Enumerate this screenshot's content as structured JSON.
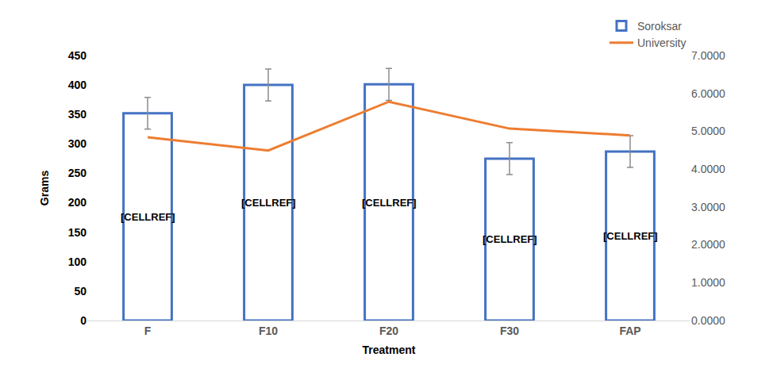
{
  "chart_data": {
    "type": "bar",
    "x_label": "Treatment",
    "y_label": "Grams",
    "categories": [
      "F",
      "F10",
      "F20",
      "F30",
      "FAP"
    ],
    "series": [
      {
        "name": "Soroksar",
        "type": "bar",
        "color": "#4472c4",
        "values": [
          352,
          400,
          401,
          275,
          287
        ],
        "errors": [
          27,
          27,
          27,
          27,
          27
        ],
        "labels": [
          "[CELLREF]",
          "[CELLREF]",
          "[CELLREF]",
          "[CELLREF]",
          "[CELLREF]"
        ]
      },
      {
        "name": "University",
        "type": "line",
        "color": "#ed7d31",
        "axis": "y2",
        "values": [
          4.84,
          4.49,
          5.78,
          5.07,
          4.89
        ]
      }
    ],
    "ylim": [
      0,
      450
    ],
    "yticks": [
      0,
      50,
      100,
      150,
      200,
      250,
      300,
      350,
      400,
      450
    ],
    "y2lim": [
      0,
      7
    ],
    "y2ticks": [
      {
        "value": 0,
        "label": "0.0000"
      },
      {
        "value": 1,
        "label": "1.0000"
      },
      {
        "value": 2,
        "label": "2.0000"
      },
      {
        "value": 3,
        "label": "3.0000"
      },
      {
        "value": 4,
        "label": "4.0000"
      },
      {
        "value": 5,
        "label": "5.0000"
      },
      {
        "value": 6,
        "label": "6.0000"
      },
      {
        "value": 7,
        "label": "7.0000"
      }
    ],
    "grid": false,
    "legend": "top right"
  }
}
